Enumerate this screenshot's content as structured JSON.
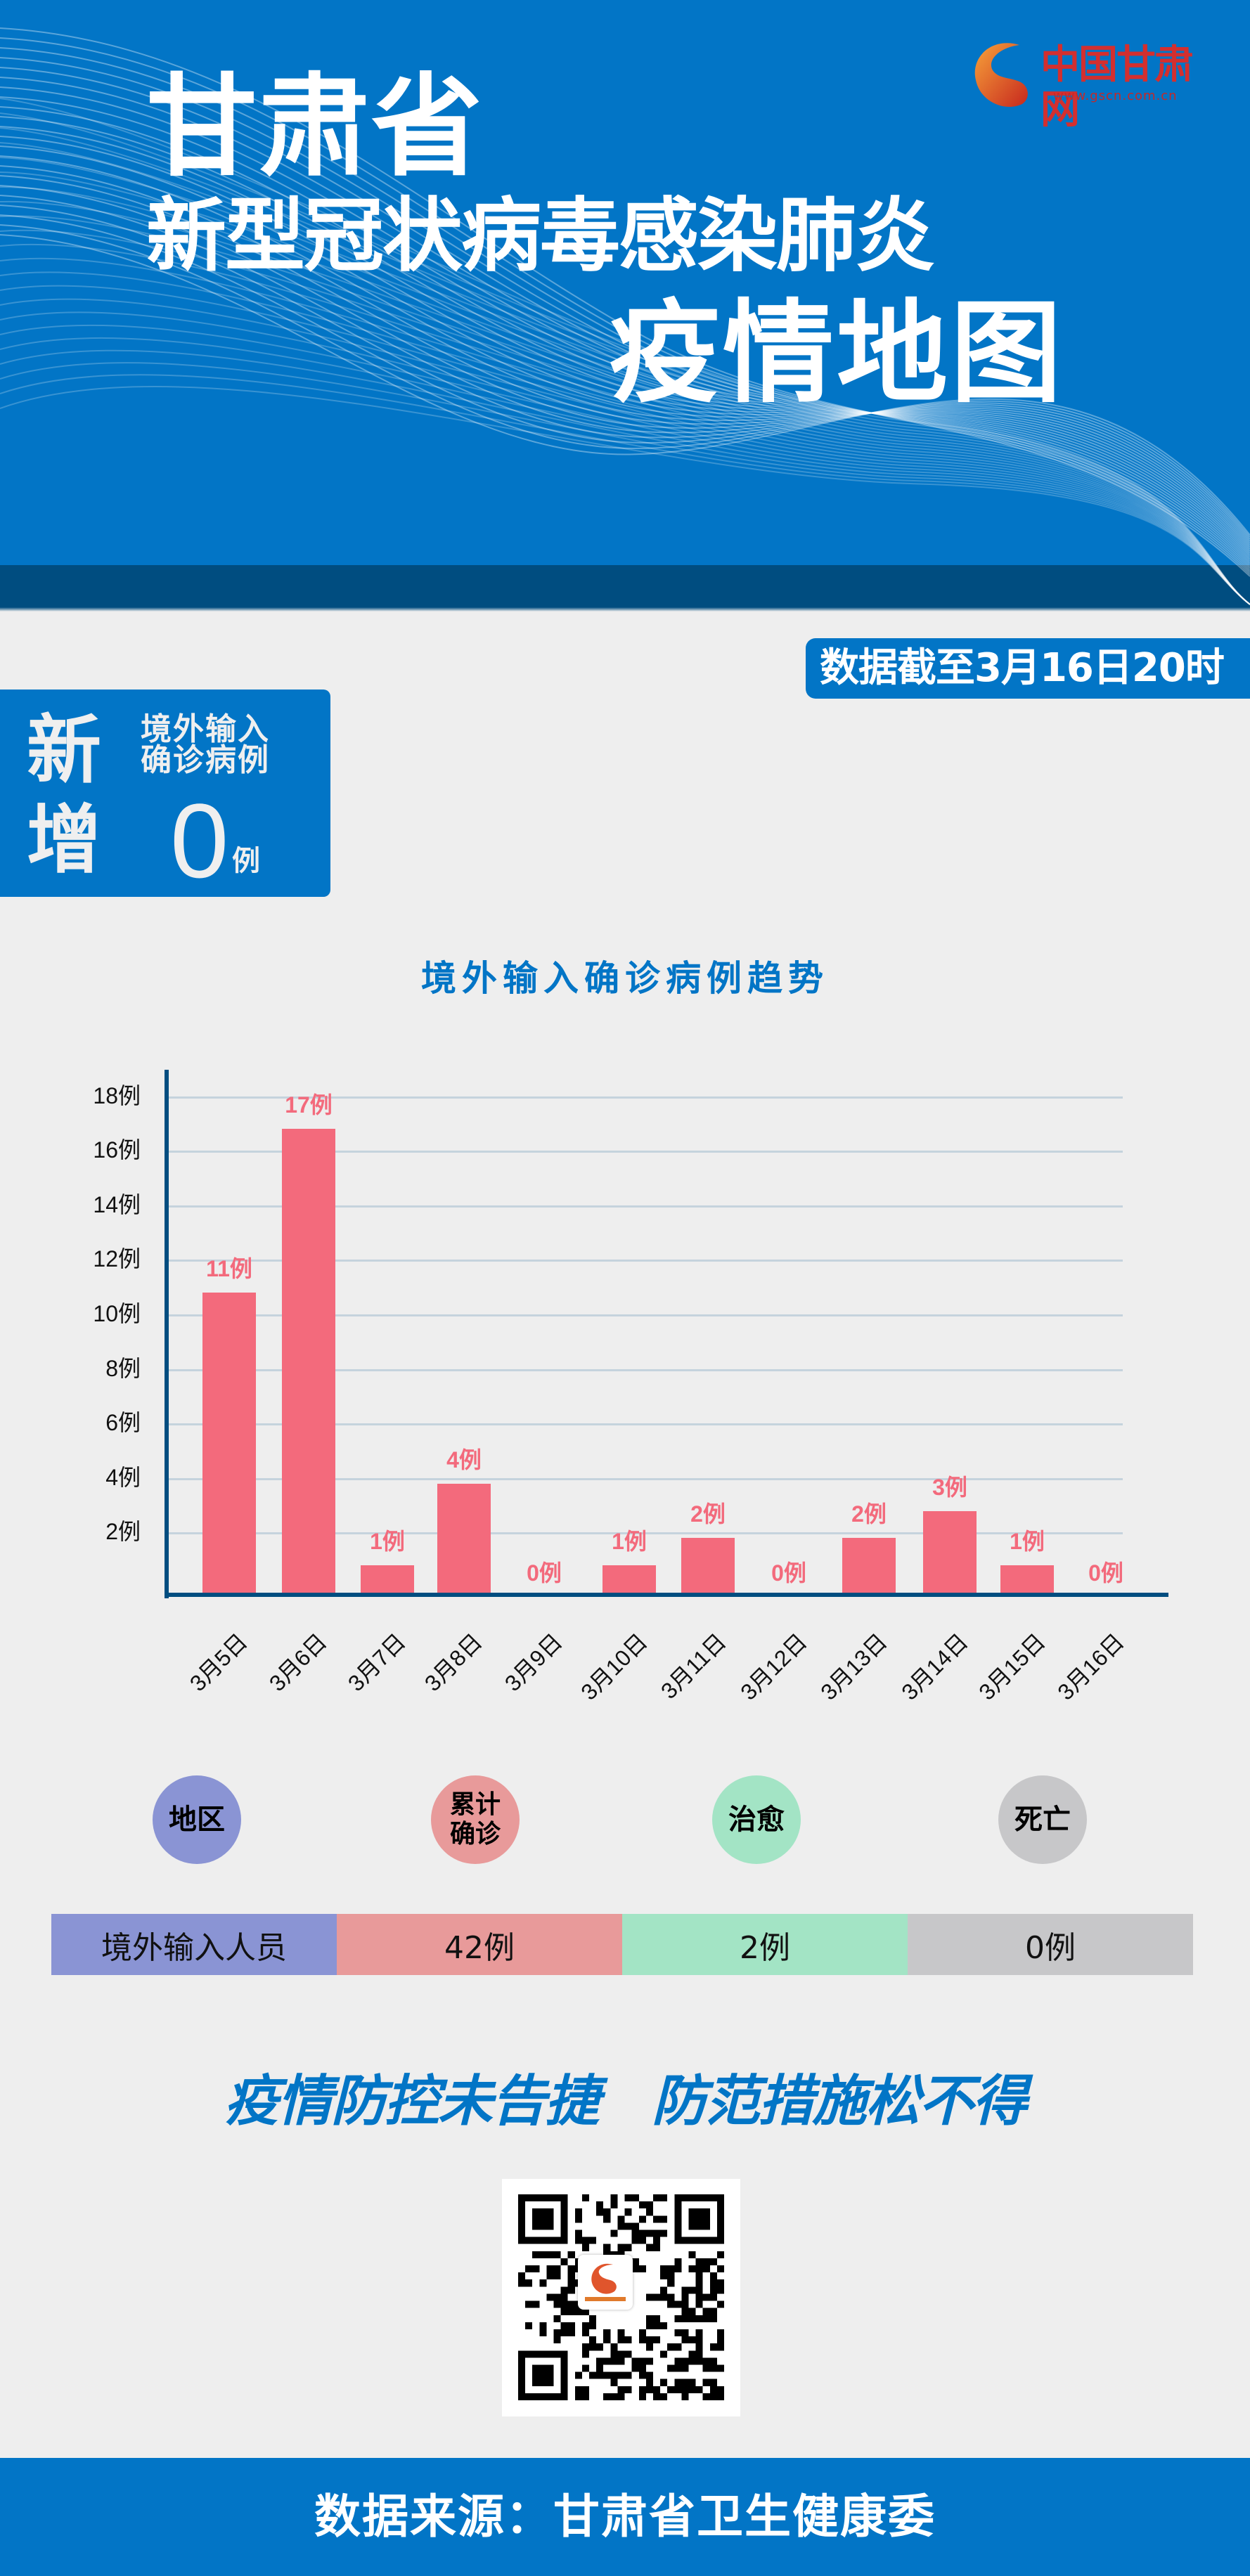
{
  "header": {
    "title_line1": "甘肃省",
    "title_line2": "新型冠状病毒感染肺炎",
    "title_line3": "疫情地图",
    "logo_name": "中国甘肃网",
    "logo_url": "www.gscn.com.cn"
  },
  "date_badge": "数据截至3月16日20时",
  "new_cases": {
    "label_char1": "新",
    "label_char2": "增",
    "sub_line1": "境外输入",
    "sub_line2": "确诊病例",
    "value": "0",
    "unit": "例"
  },
  "chart_data": {
    "type": "bar",
    "title": "境外输入确诊病例趋势",
    "xlabel": "",
    "ylabel": "",
    "ylim": [
      0,
      18
    ],
    "grid": true,
    "y_ticks": [
      "18例",
      "16例",
      "14例",
      "12例",
      "10例",
      "8例",
      "6例",
      "4例",
      "2例"
    ],
    "categories": [
      "3月5日",
      "3月6日",
      "3月7日",
      "3月8日",
      "3月9日",
      "3月10日",
      "3月11日",
      "3月12日",
      "3月13日",
      "3月14日",
      "3月15日",
      "3月16日"
    ],
    "values": [
      11,
      17,
      1,
      4,
      0,
      1,
      2,
      0,
      2,
      3,
      1,
      0
    ],
    "value_labels": [
      "11例",
      "17例",
      "1例",
      "4例",
      "0例",
      "1例",
      "2例",
      "0例",
      "2例",
      "3例",
      "1例",
      "0例"
    ],
    "bar_color": "#f36a7c"
  },
  "stats": {
    "headers": [
      {
        "label": "地区",
        "color": "#8a94d4"
      },
      {
        "label": "累计\n确诊",
        "color": "#e89a9a"
      },
      {
        "label": "治愈",
        "color": "#a3e4c5"
      },
      {
        "label": "死亡",
        "color": "#c7c7c9"
      }
    ],
    "row": [
      "境外输入人员",
      "42例",
      "2例",
      "0例"
    ]
  },
  "slogan": "疫情防控未告捷　防范措施松不得",
  "footer": "数据来源：甘肃省卫生健康委",
  "colors": {
    "primary_blue": "#0275c6",
    "dark_blue": "#004d80",
    "background": "#eeeeee"
  }
}
